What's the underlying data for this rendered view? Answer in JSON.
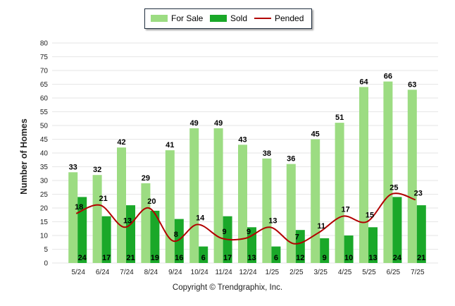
{
  "legend": {
    "for_sale": "For Sale",
    "sold": "Sold",
    "pended": "Pended"
  },
  "colors": {
    "for_sale": "#9cdc82",
    "sold": "#1aa829",
    "pended": "#b20000",
    "grid": "#e6e6e6"
  },
  "footer": "Copyright © Trendgraphix, Inc.",
  "chart_data": {
    "type": "bar",
    "ylabel": "Number of Homes",
    "xlabel": "",
    "ylim": [
      0,
      80
    ],
    "yticks": [
      0,
      5,
      10,
      15,
      20,
      25,
      30,
      35,
      40,
      45,
      50,
      55,
      60,
      65,
      70,
      75,
      80
    ],
    "grid": true,
    "legend_position": "top-center",
    "categories": [
      "5/24",
      "6/24",
      "7/24",
      "8/24",
      "9/24",
      "10/24",
      "11/24",
      "12/24",
      "1/25",
      "2/25",
      "3/25",
      "4/25",
      "5/25",
      "6/25",
      "7/25"
    ],
    "series": [
      {
        "name": "For Sale",
        "type": "bar",
        "values": [
          33,
          32,
          42,
          29,
          41,
          49,
          49,
          43,
          38,
          36,
          45,
          51,
          64,
          66,
          63
        ]
      },
      {
        "name": "Sold",
        "type": "bar",
        "values": [
          24,
          17,
          21,
          19,
          16,
          6,
          17,
          13,
          6,
          12,
          9,
          10,
          13,
          24,
          21
        ]
      },
      {
        "name": "Pended",
        "type": "line",
        "values": [
          18,
          21,
          13,
          20,
          8,
          14,
          9,
          9,
          13,
          7,
          11,
          17,
          15,
          25,
          23
        ]
      }
    ]
  }
}
